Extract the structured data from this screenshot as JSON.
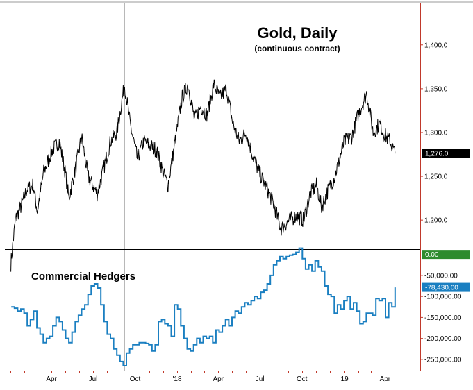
{
  "chart_data": [
    {
      "type": "line",
      "title": "Gold, Daily",
      "subtitle": "(continuous contract)",
      "ylim": [
        1170,
        1445
      ],
      "yticks": [
        1200,
        1250,
        1300,
        1350,
        1400
      ],
      "ytick_labels": [
        "1,200.0",
        "1,250.0",
        "1,300.0",
        "1,350.0",
        "1,400.0"
      ],
      "last_value": 1276.0,
      "last_value_label": "1,276.0",
      "x": [
        "2017-01-02",
        "2017-01-12",
        "2017-01-24",
        "2017-02-06",
        "2017-02-20",
        "2017-03-01",
        "2017-03-15",
        "2017-04-03",
        "2017-04-18",
        "2017-05-01",
        "2017-05-09",
        "2017-05-24",
        "2017-06-06",
        "2017-06-20",
        "2017-07-10",
        "2017-07-25",
        "2017-08-08",
        "2017-08-22",
        "2017-09-08",
        "2017-09-20",
        "2017-10-06",
        "2017-10-20",
        "2017-11-03",
        "2017-11-17",
        "2017-12-01",
        "2017-12-12",
        "2017-12-26",
        "2018-01-12",
        "2018-01-25",
        "2018-02-08",
        "2018-02-22",
        "2018-03-08",
        "2018-03-22",
        "2018-04-05",
        "2018-04-19",
        "2018-05-03",
        "2018-05-17",
        "2018-06-01",
        "2018-06-15",
        "2018-06-29",
        "2018-07-13",
        "2018-07-30",
        "2018-08-16",
        "2018-09-04",
        "2018-09-20",
        "2018-10-05",
        "2018-10-19",
        "2018-11-02",
        "2018-11-13",
        "2018-11-28",
        "2018-12-12",
        "2019-01-02",
        "2019-01-18",
        "2019-02-01",
        "2019-02-20",
        "2019-03-06",
        "2019-03-20",
        "2019-04-03",
        "2019-04-12",
        "2019-04-23"
      ],
      "values": [
        1150,
        1200,
        1215,
        1235,
        1240,
        1210,
        1255,
        1280,
        1290,
        1255,
        1225,
        1260,
        1295,
        1250,
        1230,
        1260,
        1290,
        1300,
        1355,
        1310,
        1270,
        1290,
        1285,
        1280,
        1255,
        1240,
        1285,
        1340,
        1355,
        1315,
        1330,
        1320,
        1355,
        1340,
        1350,
        1310,
        1290,
        1300,
        1275,
        1255,
        1240,
        1220,
        1190,
        1200,
        1205,
        1200,
        1230,
        1240,
        1215,
        1235,
        1250,
        1290,
        1295,
        1320,
        1345,
        1300,
        1310,
        1295,
        1290,
        1276
      ]
    },
    {
      "type": "line",
      "step": true,
      "title": "Commercial Hedgers",
      "ylim": [
        -270000,
        6000
      ],
      "yticks": [
        -250000,
        -200000,
        -150000,
        -100000,
        -50000
      ],
      "ytick_labels": [
        "-250,000.00",
        "-200,000.00",
        "-150,000.00",
        "-100,000.00",
        "-50,000.00"
      ],
      "reference_line": 0,
      "reference_label": "0.00",
      "last_value": -78430,
      "last_value_label": "-78,430.00",
      "x": [
        "2017-01-03",
        "2017-01-10",
        "2017-01-17",
        "2017-01-24",
        "2017-01-31",
        "2017-02-07",
        "2017-02-14",
        "2017-02-21",
        "2017-02-28",
        "2017-03-07",
        "2017-03-14",
        "2017-03-21",
        "2017-03-28",
        "2017-04-04",
        "2017-04-11",
        "2017-04-18",
        "2017-04-25",
        "2017-05-02",
        "2017-05-09",
        "2017-05-16",
        "2017-05-23",
        "2017-05-30",
        "2017-06-06",
        "2017-06-13",
        "2017-06-20",
        "2017-06-27",
        "2017-07-04",
        "2017-07-11",
        "2017-07-18",
        "2017-07-25",
        "2017-08-01",
        "2017-08-08",
        "2017-08-15",
        "2017-08-22",
        "2017-08-29",
        "2017-09-05",
        "2017-09-12",
        "2017-09-19",
        "2017-09-26",
        "2017-10-03",
        "2017-10-10",
        "2017-10-17",
        "2017-10-24",
        "2017-10-31",
        "2017-11-07",
        "2017-11-14",
        "2017-11-21",
        "2017-11-28",
        "2017-12-05",
        "2017-12-12",
        "2017-12-19",
        "2017-12-26",
        "2018-01-02",
        "2018-01-09",
        "2018-01-16",
        "2018-01-23",
        "2018-01-30",
        "2018-02-06",
        "2018-02-13",
        "2018-02-20",
        "2018-02-27",
        "2018-03-06",
        "2018-03-13",
        "2018-03-20",
        "2018-03-27",
        "2018-04-03",
        "2018-04-10",
        "2018-04-17",
        "2018-04-24",
        "2018-05-01",
        "2018-05-08",
        "2018-05-15",
        "2018-05-22",
        "2018-05-29",
        "2018-06-05",
        "2018-06-12",
        "2018-06-19",
        "2018-06-26",
        "2018-07-03",
        "2018-07-10",
        "2018-07-17",
        "2018-07-24",
        "2018-07-31",
        "2018-08-07",
        "2018-08-14",
        "2018-08-21",
        "2018-08-28",
        "2018-09-04",
        "2018-09-11",
        "2018-09-18",
        "2018-09-25",
        "2018-10-02",
        "2018-10-09",
        "2018-10-16",
        "2018-10-23",
        "2018-10-30",
        "2018-11-06",
        "2018-11-13",
        "2018-11-20",
        "2018-11-27",
        "2018-12-04",
        "2018-12-11",
        "2018-12-18",
        "2018-12-25",
        "2019-01-01",
        "2019-01-08",
        "2019-01-15",
        "2019-01-22",
        "2019-01-29",
        "2019-02-05",
        "2019-02-12",
        "2019-02-19",
        "2019-02-26",
        "2019-03-05",
        "2019-03-12",
        "2019-03-19",
        "2019-03-26",
        "2019-04-02",
        "2019-04-09",
        "2019-04-16",
        "2019-04-23"
      ],
      "values": [
        -125000,
        -128000,
        -135000,
        -130000,
        -140000,
        -170000,
        -155000,
        -135000,
        -175000,
        -190000,
        -210000,
        -200000,
        -195000,
        -170000,
        -150000,
        -160000,
        -180000,
        -200000,
        -210000,
        -185000,
        -160000,
        -145000,
        -130000,
        -120000,
        -95000,
        -75000,
        -70000,
        -80000,
        -120000,
        -160000,
        -190000,
        -200000,
        -225000,
        -240000,
        -255000,
        -265000,
        -235000,
        -225000,
        -215000,
        -215000,
        -210000,
        -210000,
        -212000,
        -215000,
        -230000,
        -215000,
        -160000,
        -155000,
        -165000,
        -170000,
        -195000,
        -120000,
        -130000,
        -170000,
        -200000,
        -225000,
        -230000,
        -215000,
        -200000,
        -210000,
        -195000,
        -200000,
        -195000,
        -210000,
        -180000,
        -185000,
        -170000,
        -155000,
        -170000,
        -150000,
        -135000,
        -140000,
        -125000,
        -115000,
        -120000,
        -110000,
        -100000,
        -105000,
        -90000,
        -85000,
        -70000,
        -50000,
        -25000,
        -15000,
        -5000,
        -10000,
        -5000,
        -2000,
        0,
        5000,
        15000,
        -10000,
        -35000,
        -25000,
        -40000,
        -15000,
        -30000,
        -40000,
        -75000,
        -95000,
        -100000,
        -140000,
        -120000,
        -130000,
        -110000,
        -100000,
        -130000,
        -115000,
        -135000,
        -165000,
        -160000,
        -140000,
        -140000,
        -145000,
        -105000,
        -110000,
        -105000,
        -150000,
        -115000,
        -125000,
        -78430
      ]
    }
  ],
  "x_axis": {
    "labels": [
      "Apr",
      "Jul",
      "Oct",
      "'18",
      "Apr",
      "Jul",
      "Oct",
      "'19",
      "Apr"
    ],
    "label_dates": [
      "2017-04-01",
      "2017-07-01",
      "2017-10-01",
      "2018-01-01",
      "2018-04-01",
      "2018-07-01",
      "2018-10-01",
      "2019-01-01",
      "2019-04-01"
    ],
    "start": "2016-12-20",
    "end": "2019-06-17",
    "vertical_markers": [
      "2017-09-08",
      "2018-01-18",
      "2019-02-20"
    ]
  },
  "colors": {
    "price_line": "#000000",
    "hedgers_line": "#1a7fc1",
    "reference_line": "#2e8b2e",
    "zero_badge": "#2e8b2e",
    "last_hedgers_badge": "#1a7fc1",
    "last_price_badge": "#000000",
    "axis": "#c0392b",
    "marker_line": "#b8b8b8",
    "panel_divider": "#000000"
  }
}
